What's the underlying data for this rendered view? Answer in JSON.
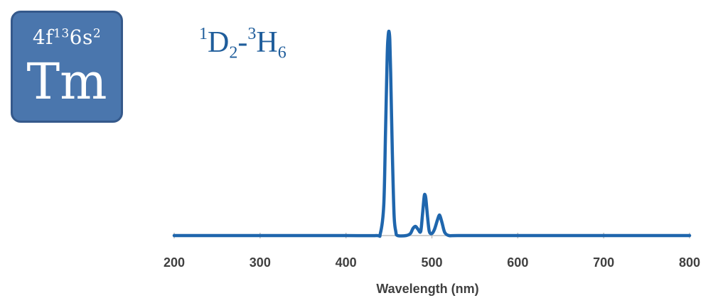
{
  "element": {
    "configuration_base": "4f",
    "configuration_f_electrons": "13",
    "configuration_s": "6s",
    "configuration_s_electrons": "2",
    "symbol": "Tm"
  },
  "transition": {
    "upper_multiplicity": "1",
    "upper_term": "D",
    "upper_j": "2",
    "separator": "-",
    "lower_multiplicity": "3",
    "lower_term": "H",
    "lower_j": "6"
  },
  "chart_data": {
    "type": "line",
    "xlabel": "Wavelength (nm)",
    "ylabel": "",
    "xlim": [
      200,
      800
    ],
    "ylim": [
      0,
      1
    ],
    "xticks": [
      200,
      300,
      400,
      500,
      600,
      700,
      800
    ],
    "grid": false,
    "color": "#1f66ad",
    "series": [
      {
        "x": [
          200,
          300,
          400,
          435,
          440,
          444,
          446,
          448,
          449,
          450,
          451,
          452,
          454,
          456,
          458,
          460,
          470,
          475,
          478,
          481,
          484,
          487,
          489,
          491,
          492,
          493,
          495,
          497,
          500,
          503,
          506,
          508,
          509,
          510,
          512,
          515,
          520,
          530,
          600,
          700,
          800
        ],
        "y": [
          0,
          0,
          0,
          0,
          0.01,
          0.15,
          0.5,
          0.88,
          0.97,
          1.0,
          0.96,
          0.8,
          0.4,
          0.1,
          0.02,
          0,
          0,
          0.01,
          0.035,
          0.045,
          0.03,
          0.02,
          0.1,
          0.19,
          0.2,
          0.18,
          0.09,
          0.02,
          0.01,
          0.03,
          0.07,
          0.095,
          0.1,
          0.09,
          0.06,
          0.015,
          0,
          0,
          0,
          0,
          0
        ]
      }
    ]
  }
}
